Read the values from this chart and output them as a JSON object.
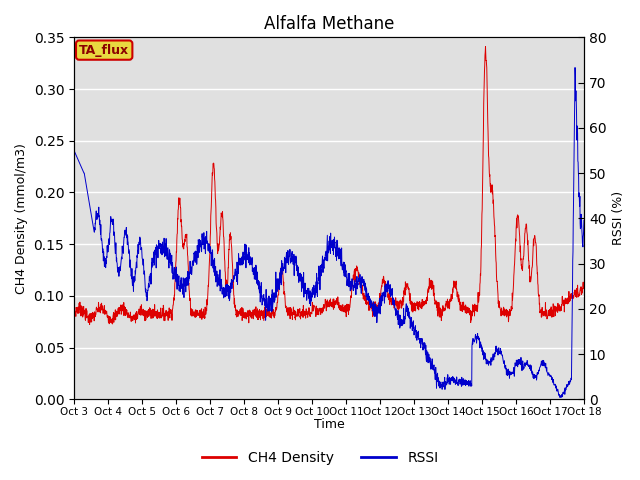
{
  "title": "Alfalfa Methane",
  "xlabel": "Time",
  "ylabel_left": "CH4 Density (mmol/m3)",
  "ylabel_right": "RSSI (%)",
  "ylim_left": [
    0.0,
    0.35
  ],
  "ylim_right": [
    0,
    80
  ],
  "background_color": "#ffffff",
  "plot_bg_color": "#e0e0e0",
  "ch4_color": "#dd0000",
  "rssi_color": "#0000cc",
  "annotation_text": "TA_flux",
  "annotation_bg": "#e8d840",
  "annotation_border": "#cc0000",
  "legend_entries": [
    "CH4 Density",
    "RSSI"
  ],
  "x_tick_labels": [
    "Oct 3",
    "Oct 4",
    "Oct 5",
    "Oct 6",
    "Oct 7",
    "Oct 8",
    "Oct 9",
    "Oct 10",
    "Oct 11",
    "Oct 12",
    "Oct 13",
    "Oct 14",
    "Oct 15",
    "Oct 16",
    "Oct 17",
    "Oct 18"
  ],
  "n_points": 2000
}
